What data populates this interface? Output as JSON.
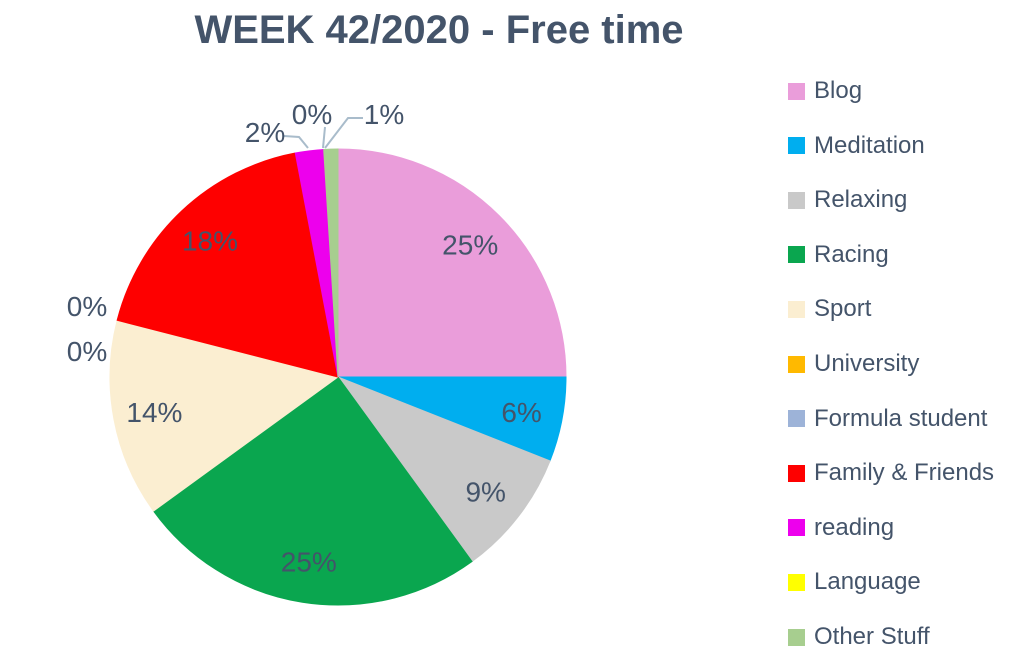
{
  "chart_data": {
    "type": "pie",
    "title": "WEEK 42/2020 - Free time",
    "categories": [
      "Blog",
      "Meditation",
      "Relaxing",
      "Racing",
      "Sport",
      "University",
      "Formula student",
      "Family & Friends",
      "reading",
      "Language",
      "Other Stuff"
    ],
    "values": [
      25,
      6,
      9,
      25,
      14,
      0,
      0,
      18,
      2,
      0,
      1
    ],
    "data_labels": [
      "25%",
      "6%",
      "9%",
      "25%",
      "14%",
      "0%",
      "0%",
      "18%",
      "2%",
      "0%",
      "1%"
    ],
    "unit": "percent",
    "colors": [
      "#EA9DDA",
      "#00AEEF",
      "#C9C9C9",
      "#0AA64F",
      "#FBEED1",
      "#FFB900",
      "#9DB3D8",
      "#FE0000",
      "#ED00ED",
      "#FFFF00",
      "#A7CE8F"
    ],
    "legend_position": "right",
    "start_angle_deg": 0,
    "direction": "clockwise",
    "grid": false
  },
  "styles": {
    "background": "#FFFFFF",
    "title_color": "#44546A",
    "label_color": "#44546A",
    "legend_text_color": "#44546A",
    "leader_line_color": "#A9BCCB"
  }
}
